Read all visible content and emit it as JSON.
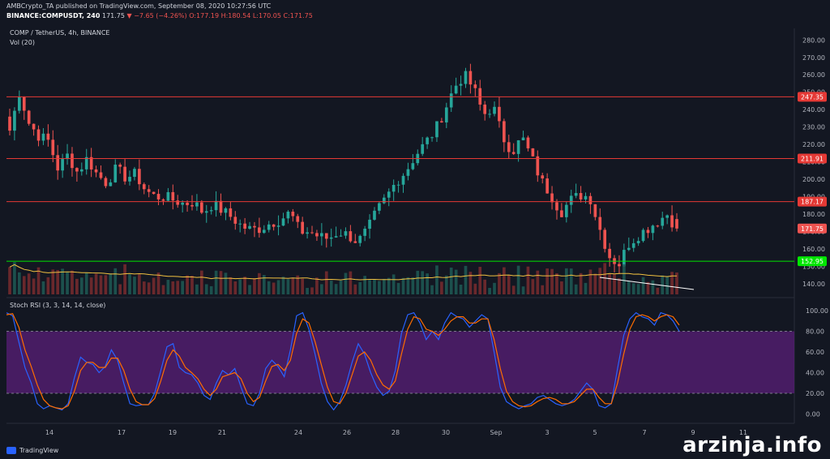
{
  "header": {
    "line1": "AMBCrypto_TA published on TradingView.com, September 08, 2020 10:27:56 UTC",
    "line2_symbol": "BINANCE:COMPUSDT, 240",
    "line2_price": "171.75",
    "line2_change": "▼ −7.65 (−4.26%)",
    "line2_ohlc": "O:177.19 H:180.54 L:170.05 C:171.75"
  },
  "chart_data": [
    {
      "type": "candlestick",
      "title": "COMP / TetherUS, 4h, BINANCE",
      "indicator": "Vol (20)",
      "ylim": [
        130,
        285
      ],
      "yticks": [
        "280.00",
        "270.00",
        "260.00",
        "250.00",
        "240.00",
        "230.00",
        "220.00",
        "210.00",
        "200.00",
        "190.00",
        "180.00",
        "170.00",
        "160.00",
        "150.00",
        "140.00"
      ],
      "xticks": [
        "14",
        "17",
        "19",
        "21",
        "24",
        "26",
        "28",
        "30",
        "Sep",
        "3",
        "5",
        "7",
        "9",
        "11"
      ],
      "levels": [
        {
          "value": 247.35,
          "label": "247.35",
          "color": "#e53935"
        },
        {
          "value": 211.91,
          "label": "211.91",
          "color": "#e53935"
        },
        {
          "value": 187.17,
          "label": "187.17",
          "color": "#e53935"
        },
        {
          "value": 171.75,
          "label": "171.75",
          "color": "#ef5350"
        },
        {
          "value": 152.95,
          "label": "152.95",
          "color": "#00e600"
        }
      ],
      "close_anchors": [
        228,
        250,
        232,
        225,
        222,
        206,
        214,
        204,
        212,
        203,
        198,
        206,
        201,
        203,
        194,
        190,
        190,
        188,
        186,
        187,
        181,
        186,
        182,
        178,
        173,
        171,
        172,
        175,
        177,
        181,
        170,
        170,
        167,
        166,
        170,
        168,
        164,
        171,
        182,
        190,
        199,
        205,
        214,
        221,
        228,
        240,
        253,
        260,
        252,
        237,
        242,
        224,
        216,
        224,
        212,
        199,
        191,
        181,
        188,
        191,
        190,
        172,
        156,
        151,
        163,
        168,
        172,
        176,
        180,
        171.75
      ],
      "up_color": "#26a69a",
      "down_color": "#ef5350"
    },
    {
      "type": "line",
      "title": "Stoch RSI (3, 3, 14, 14, close)",
      "ylim": [
        -5,
        108
      ],
      "yticks": [
        "100.00",
        "80.00",
        "60.00",
        "40.00",
        "20.00",
        "0.00"
      ],
      "band": [
        20,
        80
      ],
      "series": [
        {
          "name": "K",
          "color": "#2962ff",
          "values": [
            98,
            95,
            70,
            45,
            30,
            10,
            5,
            8,
            6,
            4,
            10,
            35,
            55,
            50,
            48,
            40,
            46,
            62,
            52,
            30,
            10,
            8,
            9,
            9,
            20,
            42,
            65,
            68,
            45,
            40,
            38,
            30,
            18,
            14,
            30,
            42,
            38,
            44,
            26,
            10,
            8,
            20,
            44,
            52,
            46,
            36,
            62,
            95,
            98,
            82,
            58,
            30,
            12,
            4,
            12,
            28,
            50,
            68,
            58,
            40,
            26,
            18,
            22,
            42,
            78,
            96,
            98,
            88,
            72,
            80,
            72,
            88,
            98,
            94,
            92,
            84,
            90,
            96,
            92,
            60,
            26,
            12,
            8,
            5,
            8,
            10,
            16,
            18,
            14,
            10,
            8,
            10,
            14,
            22,
            30,
            24,
            8,
            6,
            10,
            44,
            76,
            92,
            98,
            94,
            92,
            86,
            98,
            96,
            90,
            80
          ]
        },
        {
          "name": "D",
          "color": "#ff6d00",
          "values": [
            96,
            97,
            84,
            62,
            46,
            28,
            14,
            8,
            6,
            5,
            8,
            22,
            42,
            50,
            50,
            45,
            45,
            54,
            54,
            42,
            24,
            12,
            9,
            9,
            15,
            32,
            52,
            62,
            56,
            45,
            40,
            34,
            24,
            18,
            24,
            36,
            38,
            40,
            34,
            20,
            12,
            16,
            32,
            46,
            48,
            42,
            52,
            78,
            92,
            88,
            70,
            48,
            26,
            12,
            10,
            20,
            38,
            56,
            60,
            52,
            38,
            28,
            24,
            32,
            58,
            82,
            94,
            92,
            82,
            80,
            76,
            82,
            90,
            94,
            94,
            88,
            88,
            92,
            92,
            72,
            44,
            22,
            12,
            8,
            7,
            8,
            12,
            15,
            16,
            14,
            10,
            10,
            12,
            18,
            24,
            24,
            16,
            10,
            10,
            30,
            58,
            82,
            94,
            96,
            94,
            90,
            94,
            96,
            94,
            86
          ]
        }
      ]
    }
  ],
  "colors": {
    "background": "#131722",
    "up": "#26a69a",
    "down": "#ef5350",
    "rsi_band": "#5a1f78"
  },
  "footer": {
    "logo_text": "TradingView",
    "watermark": "arzinja.info"
  }
}
